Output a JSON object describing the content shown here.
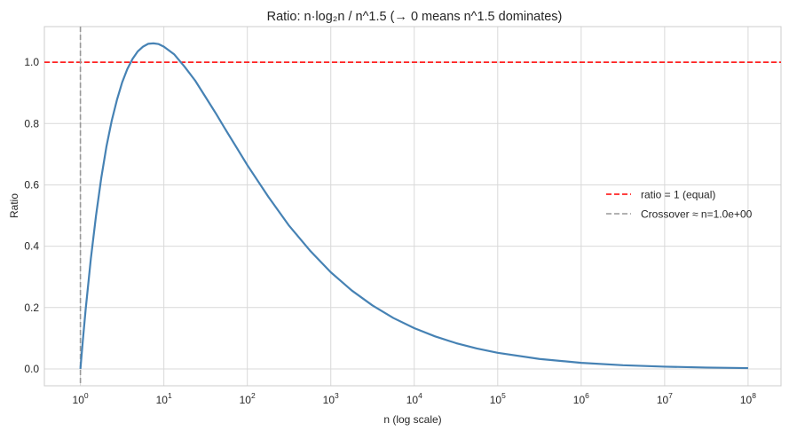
{
  "chart_data": {
    "type": "line",
    "title": "Ratio: n·log₂n / n^1.5  (→ 0 means n^1.5 dominates)",
    "xlabel": "n (log scale)",
    "ylabel": "Ratio",
    "xscale": "log",
    "xlim": [
      0.37,
      248000000
    ],
    "ylim": [
      -0.055,
      1.116
    ],
    "grid": true,
    "legend_placement": "center-right",
    "x_ticks": [
      1,
      10,
      100,
      1000,
      10000,
      100000,
      1000000,
      10000000,
      100000000
    ],
    "x_tick_labels": [
      {
        "base": "10",
        "exp": "0"
      },
      {
        "base": "10",
        "exp": "1"
      },
      {
        "base": "10",
        "exp": "2"
      },
      {
        "base": "10",
        "exp": "3"
      },
      {
        "base": "10",
        "exp": "4"
      },
      {
        "base": "10",
        "exp": "5"
      },
      {
        "base": "10",
        "exp": "6"
      },
      {
        "base": "10",
        "exp": "7"
      },
      {
        "base": "10",
        "exp": "8"
      }
    ],
    "y_ticks": [
      0.0,
      0.2,
      0.4,
      0.6,
      0.8,
      1.0
    ],
    "y_tick_labels": [
      "0.0",
      "0.2",
      "0.4",
      "0.6",
      "0.8",
      "1.0"
    ],
    "series": [
      {
        "color": "#4682b4",
        "x": [
          1,
          1.072,
          1.155,
          1.334,
          1.539,
          1.778,
          2.054,
          2.371,
          2.738,
          3.162,
          3.652,
          4.217,
          4.87,
          5.623,
          6.494,
          7.499,
          8.66,
          10,
          13.34,
          17.78,
          23.71,
          31.62,
          42.17,
          56.23,
          74.99,
          100,
          177.8,
          316.2,
          562.3,
          1000,
          1778,
          3162,
          5623,
          10000,
          17783,
          31623,
          56234,
          100000,
          316228,
          1000000,
          3162278,
          10000000,
          31622777,
          100000000
        ],
        "y": [
          0,
          0.0963,
          0.1932,
          0.3596,
          0.5,
          0.6228,
          0.7261,
          0.809,
          0.8768,
          0.934,
          0.978,
          1.011,
          1.0353,
          1.0506,
          1.06,
          1.0615,
          1.059,
          1.0505,
          1.0252,
          0.9847,
          0.94,
          0.8861,
          0.832,
          0.7752,
          0.72,
          0.6644,
          0.562,
          0.467,
          0.386,
          0.3151,
          0.256,
          0.2068,
          0.166,
          0.1329,
          0.106,
          0.0841,
          0.0665,
          0.0525,
          0.0325,
          0.0199,
          0.0121,
          0.0074,
          0.0044,
          0.0027
        ]
      }
    ],
    "reference_lines": [
      {
        "orientation": "horizontal",
        "value": 1,
        "color": "#ff0000",
        "style": "dashed",
        "label": "ratio = 1 (equal)"
      },
      {
        "orientation": "vertical",
        "value": 1,
        "color": "#999999",
        "style": "dashed",
        "label": "Crossover ≈ n=1.0e+00"
      }
    ]
  }
}
